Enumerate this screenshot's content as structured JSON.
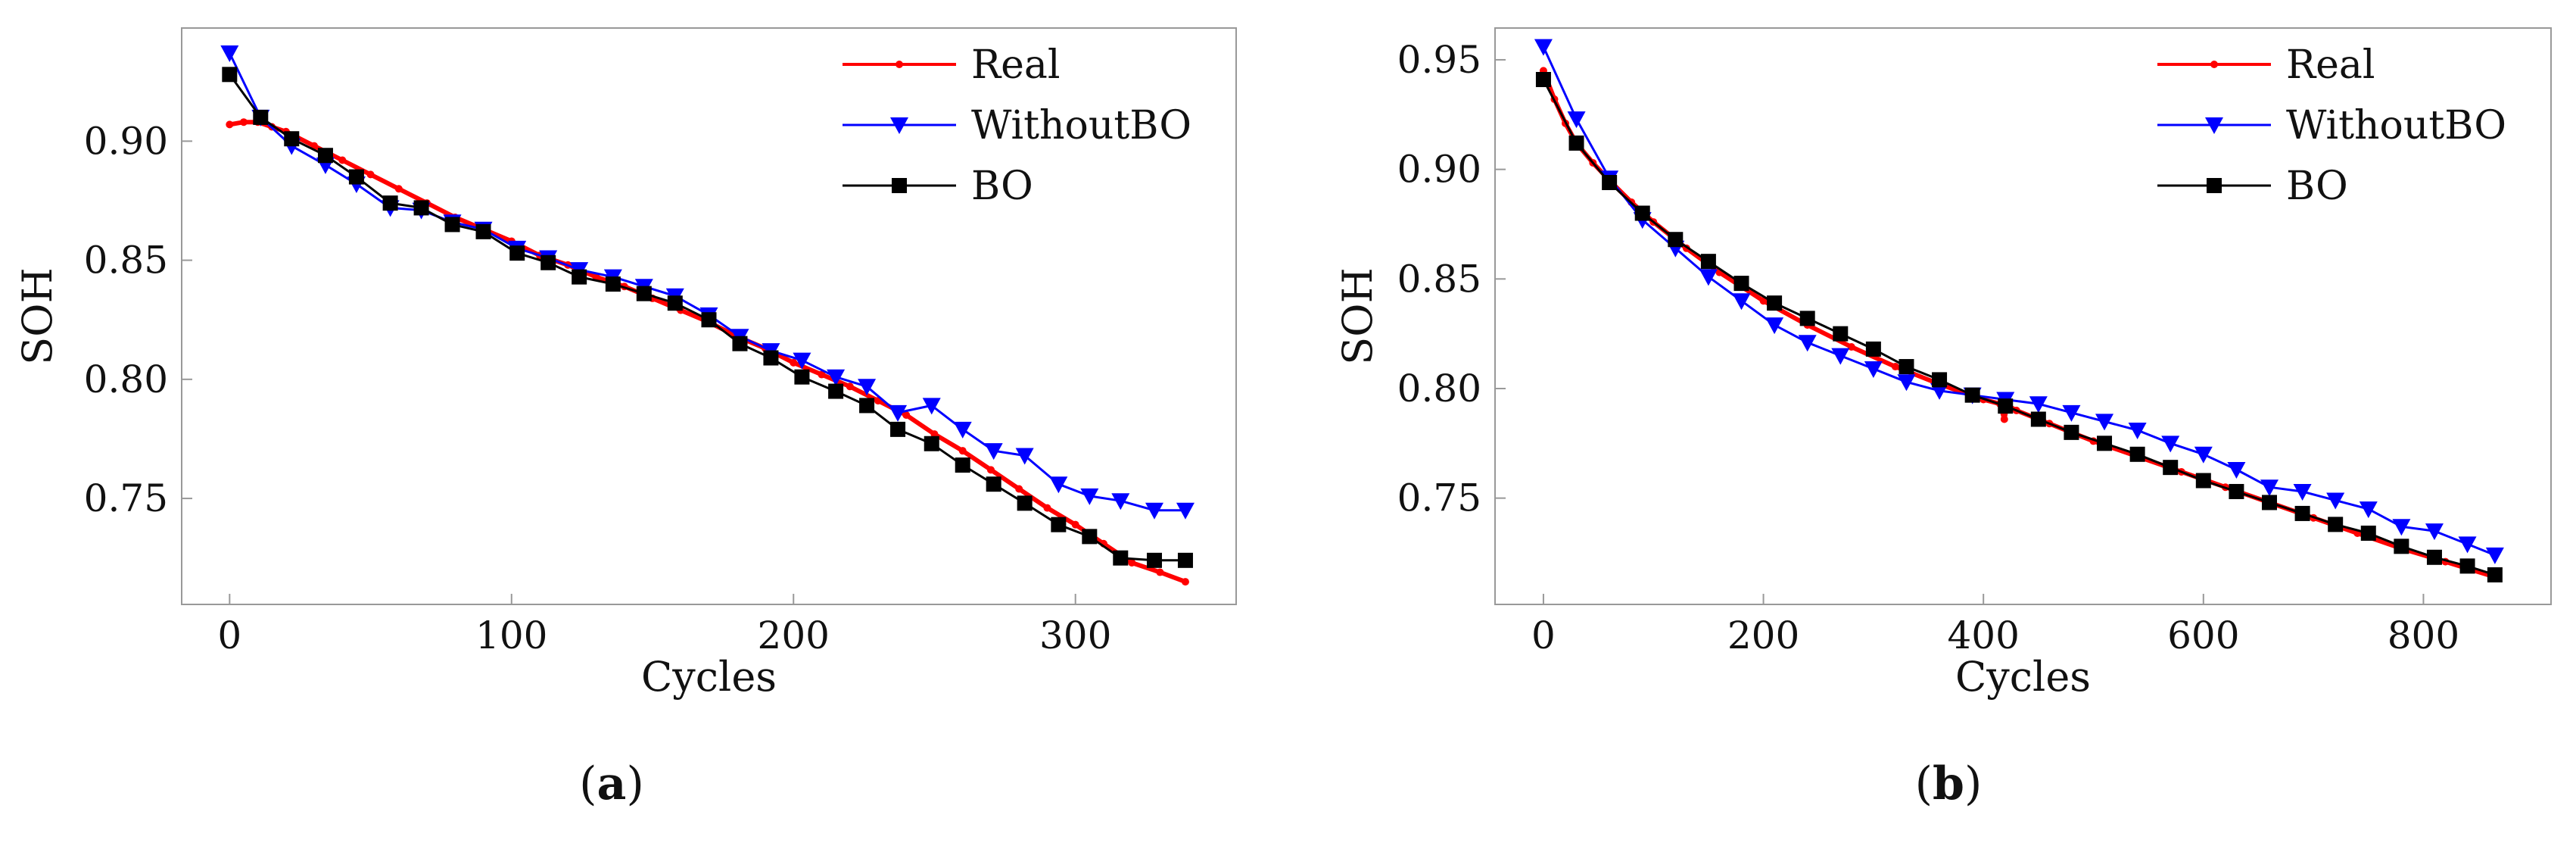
{
  "colors": {
    "real": "#ff0000",
    "without_bo": "#0000ff",
    "bo": "#000000",
    "frame": "#999999",
    "text": "#111111"
  },
  "chart_data": [
    {
      "type": "line",
      "panel": "(a)",
      "panel_letter": "a",
      "title": "",
      "xlabel": "Cycles",
      "ylabel": "SOH",
      "xlim": [
        -17,
        357
      ],
      "ylim": [
        0.7055,
        0.9475
      ],
      "x_ticks": [
        0,
        100,
        200,
        300
      ],
      "y_ticks": [
        0.75,
        0.8,
        0.85,
        0.9
      ],
      "y_tick_labels": [
        "0.75",
        "0.80",
        "0.85",
        "0.90"
      ],
      "x_tick_labels": [
        "0",
        "100",
        "200",
        "300"
      ],
      "legend": [
        "Real",
        "WithoutBO",
        "BO"
      ],
      "legend_position": "top-right",
      "series": [
        {
          "name": "Real",
          "marker": "dot",
          "x": [
            0,
            5,
            10,
            15,
            20,
            30,
            40,
            50,
            60,
            70,
            80,
            90,
            100,
            110,
            120,
            130,
            140,
            150,
            160,
            170,
            180,
            190,
            200,
            210,
            220,
            230,
            240,
            250,
            260,
            270,
            280,
            290,
            300,
            310,
            320,
            330,
            339
          ],
          "y": [
            0.907,
            0.908,
            0.908,
            0.906,
            0.904,
            0.898,
            0.892,
            0.886,
            0.88,
            0.874,
            0.868,
            0.863,
            0.858,
            0.852,
            0.848,
            0.843,
            0.839,
            0.834,
            0.829,
            0.824,
            0.818,
            0.813,
            0.807,
            0.802,
            0.797,
            0.791,
            0.785,
            0.777,
            0.77,
            0.762,
            0.754,
            0.746,
            0.739,
            0.731,
            0.723,
            0.719,
            0.715
          ]
        },
        {
          "name": "WithoutBO",
          "marker": "triangle-down",
          "x": [
            0,
            11,
            22,
            34,
            45,
            57,
            68,
            79,
            90,
            102,
            113,
            124,
            136,
            147,
            158,
            170,
            181,
            192,
            203,
            215,
            226,
            237,
            249,
            260,
            271,
            282,
            294,
            305,
            316,
            328,
            339
          ],
          "y": [
            0.937,
            0.91,
            0.898,
            0.89,
            0.882,
            0.872,
            0.871,
            0.866,
            0.863,
            0.855,
            0.851,
            0.846,
            0.843,
            0.839,
            0.835,
            0.827,
            0.818,
            0.812,
            0.808,
            0.801,
            0.797,
            0.786,
            0.789,
            0.779,
            0.77,
            0.768,
            0.756,
            0.751,
            0.749,
            0.745,
            0.745
          ]
        },
        {
          "name": "BO",
          "marker": "square",
          "x": [
            0,
            11,
            22,
            34,
            45,
            57,
            68,
            79,
            90,
            102,
            113,
            124,
            136,
            147,
            158,
            170,
            181,
            192,
            203,
            215,
            226,
            237,
            249,
            260,
            271,
            282,
            294,
            305,
            316,
            328,
            339
          ],
          "y": [
            0.928,
            0.91,
            0.901,
            0.894,
            0.885,
            0.874,
            0.872,
            0.865,
            0.862,
            0.853,
            0.849,
            0.843,
            0.84,
            0.836,
            0.832,
            0.825,
            0.815,
            0.809,
            0.801,
            0.795,
            0.789,
            0.779,
            0.773,
            0.764,
            0.756,
            0.748,
            0.739,
            0.734,
            0.725,
            0.724,
            0.724
          ]
        }
      ]
    },
    {
      "type": "line",
      "panel": "(b)",
      "panel_letter": "b",
      "title": "",
      "xlabel": "Cycles",
      "ylabel": "SOH",
      "xlim": [
        -44,
        916
      ],
      "ylim": [
        0.7015,
        0.9645
      ],
      "x_ticks": [
        0,
        200,
        400,
        600,
        800
      ],
      "y_ticks": [
        0.75,
        0.8,
        0.85,
        0.9,
        0.95
      ],
      "y_tick_labels": [
        "0.75",
        "0.80",
        "0.85",
        "0.90",
        "0.95"
      ],
      "x_tick_labels": [
        "0",
        "200",
        "400",
        "600",
        "800"
      ],
      "legend": [
        "Real",
        "WithoutBO",
        "BO"
      ],
      "legend_position": "top-right",
      "series": [
        {
          "name": "Real",
          "marker": "dot",
          "x": [
            0,
            10,
            20,
            30,
            45,
            60,
            80,
            100,
            130,
            160,
            200,
            240,
            280,
            320,
            360,
            400,
            415,
            419,
            421,
            423,
            430,
            460,
            500,
            540,
            580,
            620,
            660,
            700,
            740,
            780,
            820,
            865
          ],
          "y": [
            0.945,
            0.932,
            0.921,
            0.912,
            0.903,
            0.895,
            0.885,
            0.876,
            0.864,
            0.853,
            0.84,
            0.829,
            0.819,
            0.81,
            0.802,
            0.795,
            0.793,
            0.786,
            0.791,
            0.792,
            0.79,
            0.784,
            0.776,
            0.769,
            0.762,
            0.755,
            0.748,
            0.741,
            0.734,
            0.727,
            0.721,
            0.714
          ]
        },
        {
          "name": "WithoutBO",
          "marker": "triangle-down",
          "x": [
            0,
            30,
            60,
            90,
            120,
            150,
            180,
            210,
            240,
            270,
            300,
            330,
            360,
            390,
            420,
            450,
            480,
            510,
            540,
            570,
            600,
            630,
            660,
            690,
            720,
            750,
            780,
            810,
            840,
            865
          ],
          "y": [
            0.956,
            0.923,
            0.896,
            0.877,
            0.864,
            0.851,
            0.84,
            0.829,
            0.821,
            0.815,
            0.809,
            0.803,
            0.799,
            0.797,
            0.795,
            0.793,
            0.789,
            0.785,
            0.781,
            0.775,
            0.77,
            0.763,
            0.755,
            0.753,
            0.749,
            0.745,
            0.737,
            0.735,
            0.729,
            0.724
          ]
        },
        {
          "name": "BO",
          "marker": "square",
          "x": [
            0,
            30,
            60,
            90,
            120,
            150,
            180,
            210,
            240,
            270,
            300,
            330,
            360,
            390,
            420,
            450,
            480,
            510,
            540,
            570,
            600,
            630,
            660,
            690,
            720,
            750,
            780,
            810,
            840,
            865
          ],
          "y": [
            0.941,
            0.912,
            0.894,
            0.88,
            0.868,
            0.858,
            0.848,
            0.839,
            0.832,
            0.825,
            0.818,
            0.81,
            0.804,
            0.797,
            0.792,
            0.786,
            0.78,
            0.775,
            0.77,
            0.764,
            0.758,
            0.753,
            0.748,
            0.743,
            0.738,
            0.734,
            0.728,
            0.723,
            0.719,
            0.715
          ]
        }
      ]
    }
  ]
}
